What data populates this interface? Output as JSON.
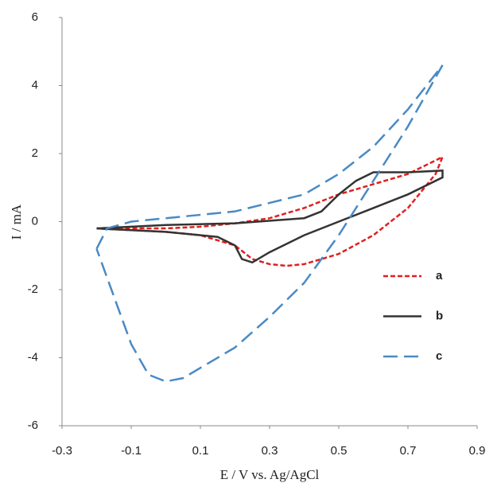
{
  "chart_data": {
    "type": "line",
    "x_label": "E / V vs. Ag/AgCl",
    "y_label": "I / mA",
    "xlim": [
      -0.3,
      0.9
    ],
    "xticks": [
      -0.3,
      -0.1,
      0.1,
      0.3,
      0.5,
      0.7,
      0.9
    ],
    "ylim": [
      -6,
      6
    ],
    "yticks": [
      -6,
      -4,
      -2,
      0,
      2,
      4,
      6
    ],
    "grid": false,
    "legend": "right",
    "series": [
      {
        "name": "a",
        "color": "#e02020",
        "dash": "6,3",
        "x": [
          -0.2,
          -0.1,
          0.0,
          0.1,
          0.2,
          0.3,
          0.4,
          0.5,
          0.6,
          0.7,
          0.8,
          0.78,
          0.7,
          0.6,
          0.5,
          0.4,
          0.35,
          0.3,
          0.25,
          0.2,
          0.1,
          0.0,
          -0.1,
          -0.2
        ],
        "values": [
          -0.2,
          -0.2,
          -0.2,
          -0.15,
          -0.05,
          0.1,
          0.4,
          0.8,
          1.1,
          1.4,
          1.9,
          1.4,
          0.4,
          -0.4,
          -0.95,
          -1.25,
          -1.3,
          -1.25,
          -1.1,
          -0.7,
          -0.4,
          -0.3,
          -0.25,
          -0.2
        ]
      },
      {
        "name": "b",
        "color": "#333333",
        "dash": "none",
        "x": [
          -0.2,
          0.0,
          0.2,
          0.4,
          0.45,
          0.5,
          0.55,
          0.6,
          0.7,
          0.8,
          0.8,
          0.7,
          0.6,
          0.5,
          0.4,
          0.3,
          0.25,
          0.22,
          0.2,
          0.15,
          0.0,
          -0.2
        ],
        "values": [
          -0.2,
          -0.1,
          -0.05,
          0.1,
          0.3,
          0.8,
          1.2,
          1.45,
          1.45,
          1.5,
          1.3,
          0.8,
          0.4,
          0.0,
          -0.4,
          -0.9,
          -1.2,
          -1.1,
          -0.7,
          -0.45,
          -0.3,
          -0.2
        ]
      },
      {
        "name": "c",
        "color": "#4a8ac4",
        "dash": "18,8",
        "x": [
          -0.2,
          -0.17,
          -0.1,
          0.0,
          0.2,
          0.4,
          0.5,
          0.6,
          0.7,
          0.8,
          0.7,
          0.6,
          0.5,
          0.4,
          0.3,
          0.2,
          0.1,
          0.05,
          0.0,
          -0.05,
          -0.1,
          -0.15,
          -0.2
        ],
        "values": [
          -0.8,
          -0.2,
          0.0,
          0.1,
          0.3,
          0.8,
          1.4,
          2.2,
          3.3,
          4.6,
          2.8,
          1.2,
          -0.4,
          -1.8,
          -2.8,
          -3.7,
          -4.3,
          -4.6,
          -4.7,
          -4.5,
          -3.6,
          -2.2,
          -0.8
        ]
      }
    ]
  }
}
